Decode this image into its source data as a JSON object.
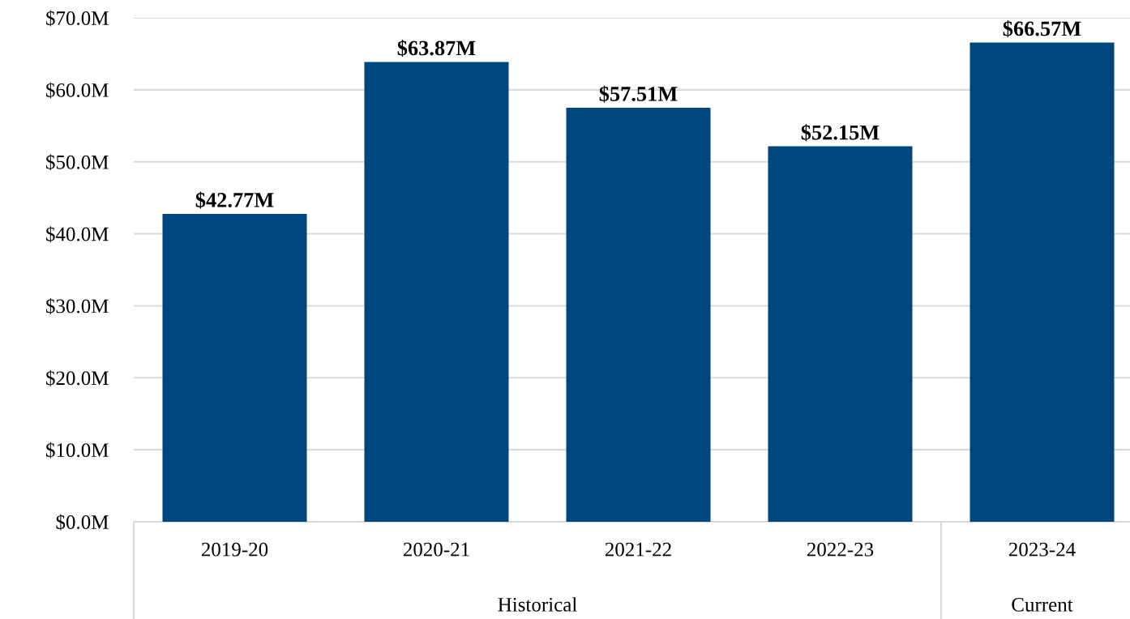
{
  "chart_data": {
    "type": "bar",
    "categories": [
      "2019-20",
      "2020-21",
      "2021-22",
      "2022-23",
      "2023-24"
    ],
    "values": [
      42.77,
      63.87,
      57.51,
      52.15,
      66.57
    ],
    "value_labels": [
      "$42.77M",
      "$63.87M",
      "$57.51M",
      "$52.15M",
      "$66.57M"
    ],
    "color": "#00467f",
    "ylim": [
      0,
      70
    ],
    "yticks": [
      {
        "value": 0,
        "label": "$0.0M"
      },
      {
        "value": 10,
        "label": "$10.0M"
      },
      {
        "value": 20,
        "label": "$20.0M"
      },
      {
        "value": 30,
        "label": "$30.0M"
      },
      {
        "value": 40,
        "label": "$40.0M"
      },
      {
        "value": 50,
        "label": "$50.0M"
      },
      {
        "value": 60,
        "label": "$60.0M"
      },
      {
        "value": 70,
        "label": "$70.0M"
      }
    ],
    "grid": "y",
    "annotations": [
      "Historical",
      "Current"
    ]
  }
}
